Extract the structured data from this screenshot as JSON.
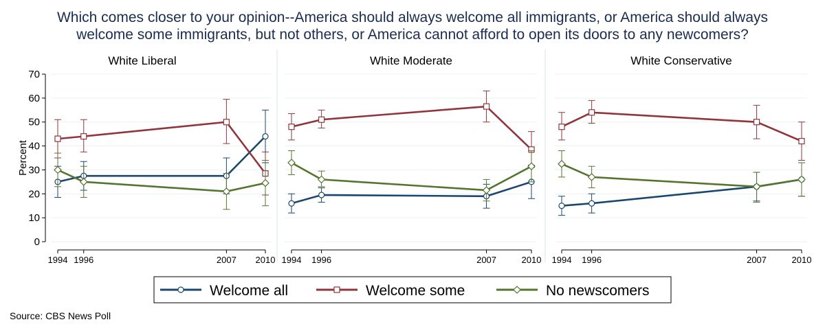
{
  "title": "Which comes closer to your opinion--America should always welcome all immigrants, or America should always welcome some immigrants, but not others, or America cannot afford to open its doors to any newcomers?",
  "title_lines": [
    "Which comes closer to your opinion--America should always welcome all immigrants, or America should always",
    "welcome some immigrants, but not others, or America cannot afford to open its doors to any newcomers?"
  ],
  "source": "Source: CBS News Poll",
  "colors": {
    "welcome_all": "#1a476f",
    "welcome_some": "#90353b",
    "no_newcomers": "#55752f",
    "title": "#1a2c4f",
    "grid": "#eaf2f3"
  },
  "chart_data": [
    {
      "type": "line",
      "title": "White Liberal",
      "x": [
        1994,
        1996,
        2007,
        2010
      ],
      "xticks": [
        "1994",
        "1996",
        "2007",
        "2010"
      ],
      "ylabel": "Percent",
      "ylim": [
        0,
        70
      ],
      "yticks": [
        "0",
        "10",
        "20",
        "30",
        "40",
        "50",
        "60",
        "70"
      ],
      "grid": true,
      "legend_position": "bottom",
      "series": [
        {
          "name": "Welcome all",
          "values": [
            25,
            27.5,
            27.5,
            44
          ],
          "ci_low": [
            18.5,
            21.5,
            20,
            33
          ],
          "ci_high": [
            31.5,
            33.5,
            35,
            55
          ]
        },
        {
          "name": "Welcome some",
          "values": [
            43,
            44,
            50,
            28.5
          ],
          "ci_low": [
            35,
            37.5,
            41,
            19.5
          ],
          "ci_high": [
            51,
            51,
            59.5,
            37.5
          ]
        },
        {
          "name": "No newscomers",
          "values": [
            30,
            25,
            21,
            24.5
          ],
          "ci_low": [
            23,
            18.5,
            13.5,
            15
          ],
          "ci_high": [
            37,
            31.5,
            28.5,
            34
          ]
        }
      ]
    },
    {
      "type": "line",
      "title": "White Moderate",
      "x": [
        1994,
        1996,
        2007,
        2010
      ],
      "xticks": [
        "1994",
        "1996",
        "2007",
        "2010"
      ],
      "ylim": [
        0,
        70
      ],
      "grid": true,
      "series": [
        {
          "name": "Welcome all",
          "values": [
            16,
            19.5,
            19,
            25
          ],
          "ci_low": [
            12,
            16.5,
            14,
            18
          ],
          "ci_high": [
            20,
            22.5,
            24,
            32
          ]
        },
        {
          "name": "Welcome some",
          "values": [
            48,
            51,
            56.5,
            38.5
          ],
          "ci_low": [
            42.5,
            47.5,
            50,
            31
          ],
          "ci_high": [
            53.5,
            55,
            63,
            46
          ]
        },
        {
          "name": "No newscomers",
          "values": [
            33,
            26,
            21.5,
            31.5
          ],
          "ci_low": [
            28,
            23,
            17,
            25
          ],
          "ci_high": [
            38,
            29.5,
            26,
            38
          ]
        }
      ]
    },
    {
      "type": "line",
      "title": "White Conservative",
      "x": [
        1994,
        1996,
        2007,
        2010
      ],
      "xticks": [
        "1994",
        "1996",
        "2007",
        "2010"
      ],
      "ylim": [
        0,
        70
      ],
      "grid": true,
      "series": [
        {
          "name": "Welcome all",
          "values": [
            15,
            16,
            23,
            26
          ],
          "ci_low": [
            11,
            12,
            17,
            19
          ],
          "ci_high": [
            19,
            20,
            29,
            33
          ]
        },
        {
          "name": "Welcome some",
          "values": [
            48,
            54,
            50,
            42
          ],
          "ci_low": [
            42.5,
            49.5,
            43,
            34
          ],
          "ci_high": [
            54,
            59,
            57,
            50
          ]
        },
        {
          "name": "No newscomers",
          "values": [
            32.5,
            27,
            23,
            26
          ],
          "ci_low": [
            27,
            22.5,
            16.5,
            19
          ],
          "ci_high": [
            38,
            31.5,
            29,
            33
          ]
        }
      ]
    }
  ]
}
